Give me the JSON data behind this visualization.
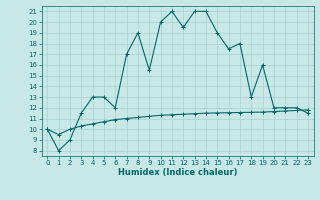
{
  "title": "",
  "xlabel": "Humidex (Indice chaleur)",
  "ylabel": "",
  "bg_color": "#c8e8e8",
  "grid_color": "#a8d0d0",
  "line_color": "#006868",
  "xlim": [
    -0.5,
    23.5
  ],
  "ylim": [
    7.5,
    21.5
  ],
  "xticks": [
    0,
    1,
    2,
    3,
    4,
    5,
    6,
    7,
    8,
    9,
    10,
    11,
    12,
    13,
    14,
    15,
    16,
    17,
    18,
    19,
    20,
    21,
    22,
    23
  ],
  "yticks": [
    8,
    9,
    10,
    11,
    12,
    13,
    14,
    15,
    16,
    17,
    18,
    19,
    20,
    21
  ],
  "line1_x": [
    0,
    1,
    2,
    3,
    4,
    5,
    6,
    7,
    8,
    9,
    10,
    11,
    12,
    13,
    14,
    15,
    16,
    17,
    18,
    19,
    20,
    21,
    22,
    23
  ],
  "line1_y": [
    10,
    8,
    9,
    11.5,
    13,
    13,
    12,
    17,
    19,
    15.5,
    20,
    21,
    19.5,
    21,
    21,
    19,
    17.5,
    18,
    13,
    16,
    12,
    12,
    12,
    11.5
  ],
  "line2_x": [
    0,
    1,
    2,
    3,
    4,
    5,
    6,
    7,
    8,
    9,
    10,
    11,
    12,
    13,
    14,
    15,
    16,
    17,
    18,
    19,
    20,
    21,
    22,
    23
  ],
  "line2_y": [
    10,
    9.5,
    10.0,
    10.3,
    10.5,
    10.7,
    10.9,
    11.0,
    11.1,
    11.2,
    11.3,
    11.35,
    11.4,
    11.45,
    11.5,
    11.52,
    11.54,
    11.56,
    11.58,
    11.6,
    11.65,
    11.7,
    11.75,
    11.8
  ],
  "xlabel_fontsize": 6,
  "tick_fontsize": 5,
  "linewidth": 0.8,
  "markersize": 2.5
}
